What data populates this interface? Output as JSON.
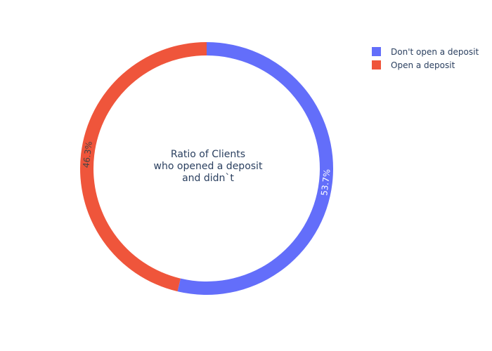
{
  "chart_data": {
    "type": "pie",
    "hole": true,
    "center_title": [
      "Ratio of Clients",
      "who opened a deposit",
      "and didn`t"
    ],
    "slices": [
      {
        "label": "Don't open a deposit",
        "value": 53.7,
        "percent_label": "53.7%",
        "color": "#636efa",
        "text_color": "#ffffff"
      },
      {
        "label": "Open a deposit",
        "value": 46.3,
        "percent_label": "46.3%",
        "color": "#ef553b",
        "text_color": "#444444"
      }
    ],
    "direction": "clockwise",
    "start": "top",
    "legend": {
      "placement": "top-right",
      "entries": [
        "Don't open a deposit",
        "Open a deposit"
      ]
    }
  }
}
